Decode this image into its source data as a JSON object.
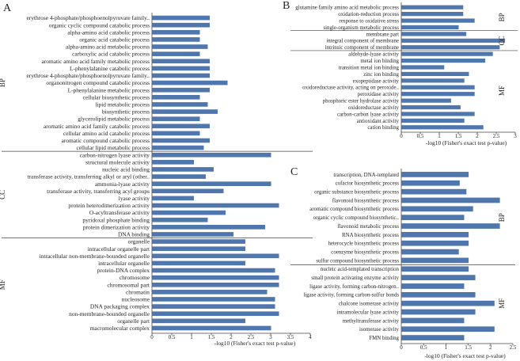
{
  "colors": {
    "bar": "#4f76ad",
    "axis": "#444444",
    "text": "#222222"
  },
  "chart_data": [
    {
      "panel": "A",
      "type": "bar",
      "orientation": "horizontal",
      "xlabel": "-log10 (Fisher's exact test p-value)",
      "xlim": [
        0,
        4
      ],
      "xticks": [
        "0",
        "0.5",
        "1",
        "1.5",
        "2",
        "2.5",
        "3",
        "3.5",
        "4"
      ],
      "groups": [
        {
          "name": "BP",
          "categories": [
            "erythrose 4-phosphate/phosphoenolpyruvate family..",
            "organic cyclic compound catabolic process",
            "alpha-amino acid catabolic process",
            "organic acid catabolic process",
            "alpha-amino acid metabolic process",
            "carboxylic acid catabolic process",
            "aromatic amino acid family metabolic process",
            "L-phenylalanine catabolic process",
            "erythrose 4-phosphate/phosphoenolpyruvate family..",
            "organonitrogen compound catabolic process",
            "L-phenylalanine metabolic process",
            "cellular biosynthetic process",
            "lipid metabolic process",
            "biosynthetic process",
            "glycerolipid metabolic process",
            "aromatic amino acid family catabolic process",
            "cellular amino acid catabolic process",
            "aromatic compound catabolic process",
            "cellular lipid metabolic process"
          ],
          "values": [
            1.45,
            1.45,
            1.2,
            1.2,
            1.4,
            1.2,
            1.45,
            1.45,
            1.45,
            1.9,
            1.45,
            1.2,
            1.4,
            1.65,
            1.2,
            1.45,
            1.2,
            1.45,
            1.3
          ]
        },
        {
          "name": "CC",
          "categories": [
            "carbon-nitrogen lyase activity",
            "structural molecule activity",
            "nucleic acid binding",
            "transferase activity, transferring alkyl or aryl (other..",
            "ammonia-lyase activity",
            "transferase activity, transferring acyl groups",
            "lyase activity",
            "protein heterodimerization activity",
            "O-acyltransferase activity",
            "pyridoxal phosphate binding",
            "protein dimerization activity",
            "DNA binding"
          ],
          "values": [
            3.0,
            1.05,
            1.55,
            1.35,
            3.0,
            1.8,
            1.05,
            3.2,
            1.85,
            1.4,
            2.85,
            2.05
          ]
        },
        {
          "name": "MF",
          "categories": [
            "organelle",
            "intracellular organelle part",
            "intracellular non-membrane-bounded organelle",
            "intracellular organelle",
            "protein-DNA complex",
            "chromosome",
            "chromosomal part",
            "chromatin",
            "nucleosome",
            "DNA packaging complex",
            "non-membrane-bounded organelle",
            "organelle part",
            "macromolecular complex"
          ],
          "values": [
            2.35,
            2.35,
            3.2,
            2.35,
            3.1,
            3.2,
            3.2,
            2.9,
            3.1,
            3.1,
            3.2,
            2.35,
            3.0
          ]
        }
      ]
    },
    {
      "panel": "B",
      "type": "bar",
      "orientation": "horizontal",
      "xlabel": "-log10 (Fisher's exact test p-value)",
      "xlim": [
        0,
        3
      ],
      "xticks": [
        "0",
        "0.5",
        "1",
        "1.5",
        "2",
        "2.5",
        "3"
      ],
      "groups": [
        {
          "name": "BP",
          "categories": [
            "glutamine family amino acid metabolic process",
            "oxidation-reduction process",
            "response to oxidative stress",
            "single-organism metabolic process"
          ],
          "values": [
            1.62,
            1.62,
            1.92,
            1.5
          ]
        },
        {
          "name": "CC",
          "categories": [
            "membrane part",
            "integral component of membrane",
            "intrinsic component of membrane"
          ],
          "values": [
            1.7,
            2.72,
            2.58
          ]
        },
        {
          "name": "MF",
          "categories": [
            "aldehyde-lyase activity",
            "metal ion binding",
            "transition metal ion binding",
            "zinc ion binding",
            "exopeptidase activity",
            "oxidoreductase activity, acting on peroxide..",
            "peroxidase activity",
            "phosphoric ester hydrolase activity",
            "oxidoreductase activity",
            "carbon-carbon lyase activity",
            "antioxidant activity",
            "cation binding"
          ],
          "values": [
            2.4,
            2.2,
            1.12,
            1.77,
            1.65,
            1.92,
            1.92,
            1.3,
            1.55,
            1.92,
            1.65,
            2.15
          ]
        }
      ]
    },
    {
      "panel": "C",
      "type": "bar",
      "orientation": "horizontal",
      "xlabel": "-log10 (Fisher's exact test p-value)",
      "xlim": [
        0,
        2.5
      ],
      "xticks": [
        "0",
        "0.5",
        "1",
        "1.5",
        "2",
        "2.5"
      ],
      "groups": [
        {
          "name": "BP",
          "categories": [
            "transcription, DNA-templated",
            "cofactor biosynthetic process",
            "organic substance biosynthetic process",
            "flavonoid biosynthetic process",
            "aromatic compound biosynthetic process",
            "organic cyclic compound biosynthetic..",
            "flavonoid metabolic process",
            "RNA biosynthetic process",
            "heterocycle biosynthetic process",
            "coenzyme biosynthetic process",
            "sulfur compound biosynthetic process"
          ],
          "values": [
            1.5,
            1.3,
            1.45,
            2.2,
            1.6,
            1.4,
            2.2,
            1.5,
            1.5,
            1.28,
            1.5
          ]
        },
        {
          "name": "MF",
          "categories": [
            "nucleic acid-templated transcription",
            "small protein activating enzyme activity",
            "ligase activity, forming carbon-nitrogen..",
            "ligase activity, forming carbon-sulfur bonds",
            "chalcone isomerase activity",
            "intramolecular lyase activity",
            "methyltransferase activity",
            "isomerase activity",
            "FMN binding"
          ],
          "values": [
            1.5,
            1.65,
            1.4,
            1.65,
            2.08,
            1.65,
            1.4,
            2.08,
            1.4
          ]
        }
      ]
    }
  ]
}
